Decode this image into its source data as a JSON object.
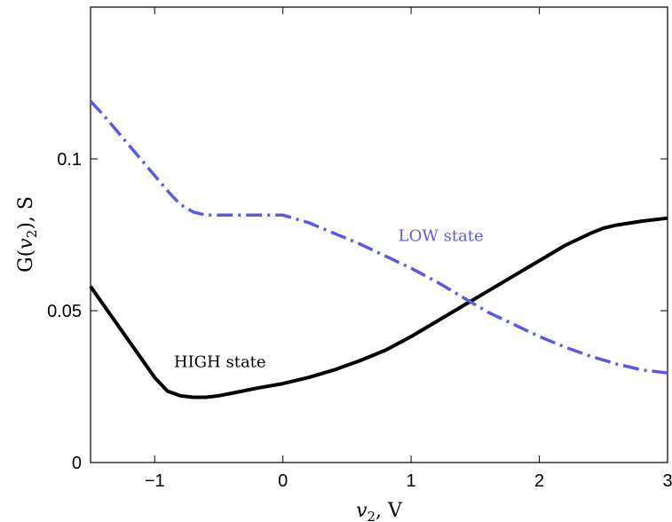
{
  "chart_data": {
    "type": "line",
    "title": "",
    "xlabel": {
      "var": "v",
      "sub": "2",
      "unit": ", V"
    },
    "ylabel": {
      "prefix": "G(",
      "var": "v",
      "sub": "2",
      "suffix": "), S"
    },
    "xlim": [
      -1.5,
      3
    ],
    "ylim": [
      0,
      0.15
    ],
    "xticks": [
      -1,
      0,
      1,
      2,
      3
    ],
    "xtick_labels": [
      "−1",
      "0",
      "1",
      "2",
      "3"
    ],
    "yticks": [
      0,
      0.05,
      0.1
    ],
    "ytick_labels": [
      "0",
      "0.05",
      "0.1"
    ],
    "grid": false,
    "series": [
      {
        "name": "HIGH state",
        "color": "#000000",
        "style": "solid",
        "x": [
          -1.5,
          -1.4,
          -1.3,
          -1.2,
          -1.1,
          -1.0,
          -0.9,
          -0.8,
          -0.7,
          -0.6,
          -0.5,
          -0.4,
          -0.2,
          0.0,
          0.2,
          0.4,
          0.6,
          0.8,
          1.0,
          1.2,
          1.4,
          1.6,
          1.8,
          2.0,
          2.2,
          2.4,
          2.5,
          2.6,
          2.8,
          3.0
        ],
        "y": [
          0.058,
          0.052,
          0.046,
          0.04,
          0.034,
          0.028,
          0.0235,
          0.022,
          0.0215,
          0.0215,
          0.022,
          0.0228,
          0.0245,
          0.026,
          0.028,
          0.0305,
          0.0335,
          0.037,
          0.0415,
          0.0465,
          0.0515,
          0.0565,
          0.0615,
          0.0665,
          0.0715,
          0.0755,
          0.0772,
          0.0782,
          0.0795,
          0.0805
        ]
      },
      {
        "name": "LOW state",
        "color": "#5a5ae6",
        "style": "dashdot",
        "x": [
          -1.5,
          -1.4,
          -1.3,
          -1.2,
          -1.1,
          -1.0,
          -0.9,
          -0.8,
          -0.7,
          -0.6,
          -0.4,
          -0.2,
          0.0,
          0.2,
          0.4,
          0.6,
          0.8,
          1.0,
          1.2,
          1.4,
          1.6,
          1.8,
          2.0,
          2.2,
          2.4,
          2.6,
          2.8,
          3.0
        ],
        "y": [
          0.119,
          0.1145,
          0.1095,
          0.1045,
          0.0995,
          0.0945,
          0.0895,
          0.085,
          0.0825,
          0.0815,
          0.0815,
          0.0815,
          0.0815,
          0.079,
          0.0755,
          0.072,
          0.068,
          0.064,
          0.0595,
          0.0545,
          0.0495,
          0.0455,
          0.0415,
          0.038,
          0.035,
          0.0325,
          0.0305,
          0.0295
        ]
      }
    ],
    "annotations": [
      {
        "text": "HIGH state",
        "x": -0.85,
        "y": 0.0315,
        "color": "#000000"
      },
      {
        "text": "LOW state",
        "x": 0.9,
        "y": 0.073,
        "color": "#5a5ae6"
      }
    ]
  }
}
